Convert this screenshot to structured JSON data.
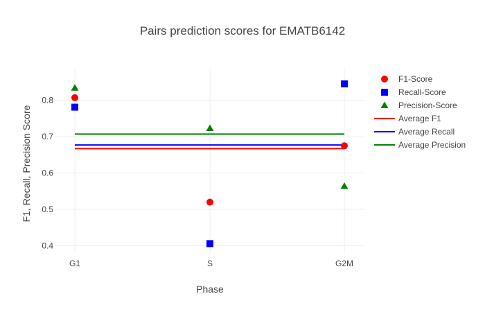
{
  "chart_data": {
    "type": "scatter",
    "title": "Pairs prediction scores for EMATB6142",
    "xlabel": "Phase",
    "ylabel": "F1, Recall, Precision Score",
    "categories": [
      "G1",
      "S",
      "G2M"
    ],
    "ylim": [
      0.38,
      0.885
    ],
    "yticks": [
      0.4,
      0.5,
      0.6,
      0.7,
      0.8
    ],
    "ytick_labels": [
      "0.4",
      "0.5",
      "0.6",
      "0.7",
      "0.8"
    ],
    "grid": true,
    "legend_position": "right",
    "series": [
      {
        "name": "F1-Score",
        "kind": "marker",
        "symbol": "circle",
        "color": "#ff0000",
        "values": [
          0.807,
          0.52,
          0.675
        ]
      },
      {
        "name": "Recall-Score",
        "kind": "marker",
        "symbol": "square",
        "color": "#0000ff",
        "values": [
          0.781,
          0.406,
          0.845
        ]
      },
      {
        "name": "Precision-Score",
        "kind": "marker",
        "symbol": "triangle-up",
        "color": "#008000",
        "values": [
          0.834,
          0.723,
          0.564
        ]
      },
      {
        "name": "Average F1",
        "kind": "line",
        "color": "#ff0000",
        "values": [
          0.667,
          0.667,
          0.667
        ]
      },
      {
        "name": "Average Recall",
        "kind": "line",
        "color": "#0000ff",
        "values": [
          0.677,
          0.677,
          0.677
        ]
      },
      {
        "name": "Average Precision",
        "kind": "line",
        "color": "#008000",
        "values": [
          0.707,
          0.707,
          0.707
        ]
      }
    ]
  }
}
